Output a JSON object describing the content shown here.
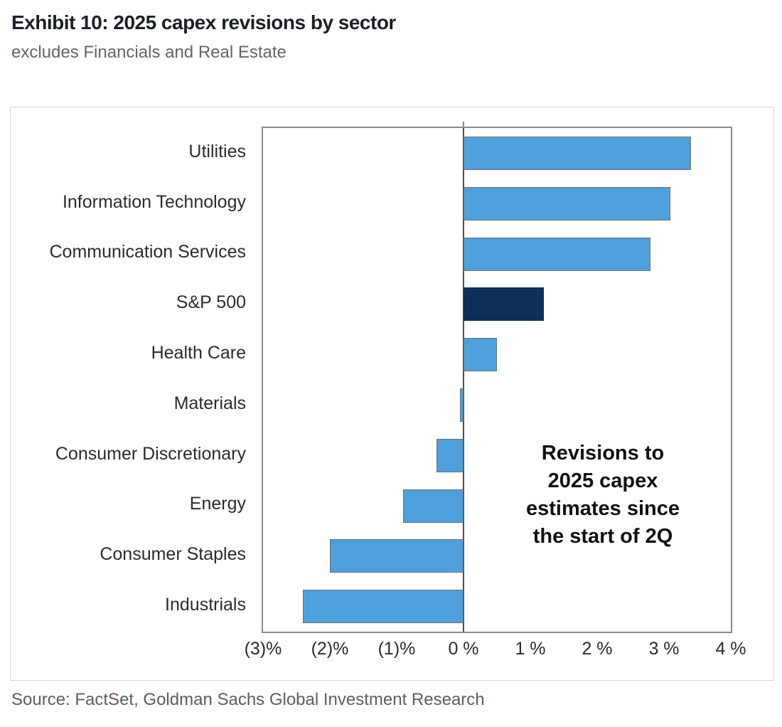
{
  "header": {
    "title": "Exhibit 10: 2025 capex revisions by sector",
    "subtitle": "excludes Financials and Real Estate"
  },
  "footer": {
    "source": "Source: FactSet, Goldman Sachs Global Investment Research"
  },
  "chart_data": {
    "type": "bar",
    "orientation": "horizontal",
    "title": "Exhibit 10: 2025 capex revisions by sector",
    "subtitle": "excludes Financials and Real Estate",
    "categories": [
      "Utilities",
      "Information Technology",
      "Communication Services",
      "S&P 500",
      "Health Care",
      "Materials",
      "Consumer Discretionary",
      "Energy",
      "Consumer Staples",
      "Industrials"
    ],
    "values": [
      3.4,
      3.1,
      2.8,
      1.2,
      0.5,
      -0.05,
      -0.4,
      -0.9,
      -2.0,
      -2.4
    ],
    "units": "%",
    "highlight_category": "S&P 500",
    "xlim": [
      -3,
      4
    ],
    "x_tick_values": [
      -3,
      -2,
      -1,
      0,
      1,
      2,
      3,
      4
    ],
    "x_tick_labels": [
      "(3)%",
      "(2)%",
      "(1)%",
      "0 %",
      "1 %",
      "2 %",
      "3 %",
      "4 %"
    ],
    "annotation": "Revisions to 2025 capex estimates since the start of 2Q",
    "annotation_lines": [
      "Revisions to",
      "2025 capex",
      "estimates since",
      "the start of 2Q"
    ],
    "legend": false,
    "grid": false,
    "colors": {
      "bar": "#4DA0DC",
      "highlight": "#0E3058",
      "bar_border": "#6f6f6f",
      "axis_line": "#4d4d4d",
      "plot_border": "#8a8a8a"
    }
  }
}
